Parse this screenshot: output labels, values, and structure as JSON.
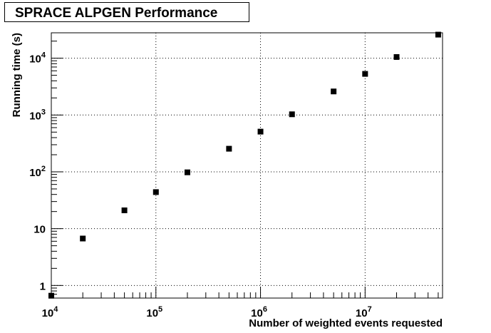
{
  "chart_data": {
    "type": "scatter",
    "title": "SPRACE ALPGEN Performance",
    "xlabel": "Number of weighted events requested",
    "ylabel": "Running time (s)",
    "x_scale": "log",
    "y_scale": "log",
    "xlim": [
      10000,
      55000000
    ],
    "ylim": [
      0.6,
      28000
    ],
    "grid": true,
    "marker": "square",
    "marker_color": "#000000",
    "x_ticks": [
      {
        "value": 10000,
        "base": "10",
        "exp": "4"
      },
      {
        "value": 100000,
        "base": "10",
        "exp": "5"
      },
      {
        "value": 1000000,
        "base": "10",
        "exp": "6"
      },
      {
        "value": 10000000,
        "base": "10",
        "exp": "7"
      }
    ],
    "y_ticks": [
      {
        "value": 1,
        "base": "1",
        "exp": ""
      },
      {
        "value": 10,
        "base": "10",
        "exp": ""
      },
      {
        "value": 100,
        "base": "10",
        "exp": "2"
      },
      {
        "value": 1000,
        "base": "10",
        "exp": "3"
      },
      {
        "value": 10000,
        "base": "10",
        "exp": "4"
      }
    ],
    "points": [
      {
        "x": 10000,
        "y": 0.66
      },
      {
        "x": 20000,
        "y": 6.7
      },
      {
        "x": 50000,
        "y": 21
      },
      {
        "x": 100000,
        "y": 44
      },
      {
        "x": 200000,
        "y": 98
      },
      {
        "x": 500000,
        "y": 255
      },
      {
        "x": 1000000,
        "y": 510
      },
      {
        "x": 2000000,
        "y": 1030
      },
      {
        "x": 5000000,
        "y": 2600
      },
      {
        "x": 10000000,
        "y": 5300
      },
      {
        "x": 20000000,
        "y": 10500
      },
      {
        "x": 50000000,
        "y": 26000
      }
    ]
  }
}
